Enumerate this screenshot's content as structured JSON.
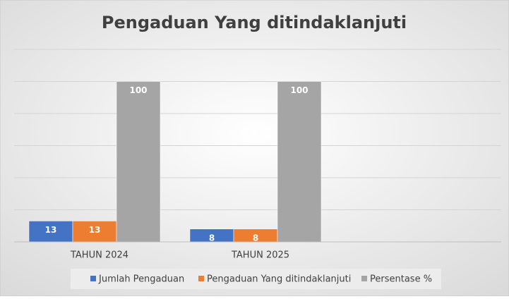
{
  "chart_data": {
    "type": "bar",
    "title": "Pengaduan Yang ditindaklanjuti",
    "categories": [
      "TAHUN 2024",
      "TAHUN 2025",
      null
    ],
    "series": [
      {
        "name": "Jumlah Pengaduan",
        "color": "#4472c4",
        "values": [
          13,
          8,
          null
        ]
      },
      {
        "name": "Pengaduan Yang ditindaklanjuti",
        "color": "#ed7d31",
        "values": [
          13,
          8,
          null
        ]
      },
      {
        "name": "Persentase %",
        "color": "#a5a5a5",
        "values": [
          100,
          100,
          null
        ]
      }
    ],
    "ylim": [
      0,
      120
    ],
    "yticks": [
      0,
      20,
      40,
      60,
      80,
      100,
      120
    ],
    "grid": true,
    "legend": "bottom"
  }
}
